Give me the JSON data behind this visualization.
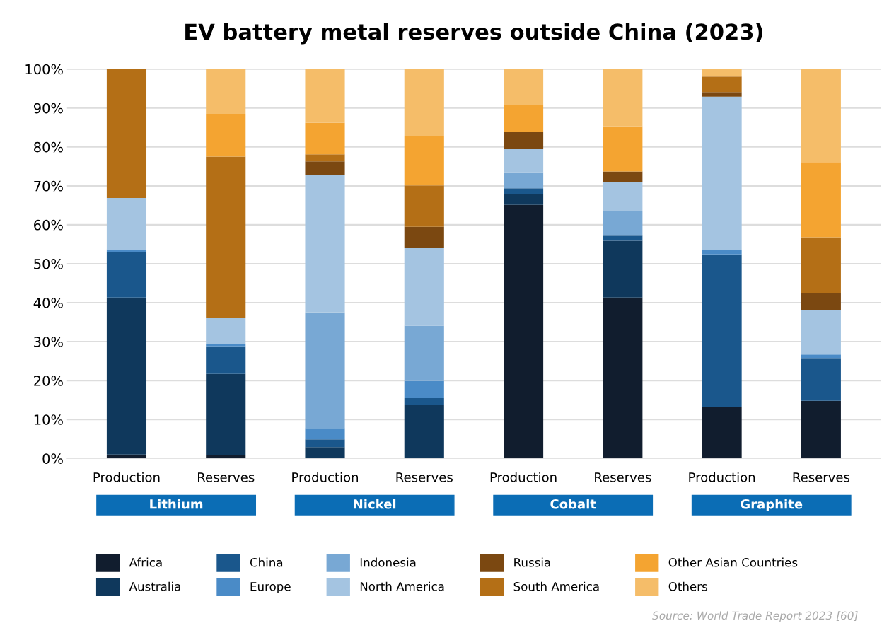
{
  "chart_data": {
    "type": "bar",
    "stacked": true,
    "title": "EV battery metal reserves outside China (2023)",
    "categories": [
      "Production",
      "Reserves",
      "Production",
      "Reserves",
      "Production",
      "Reserves",
      "Production",
      "Reserves"
    ],
    "series": [
      {
        "name": "Africa",
        "color": "#111d2e",
        "values": [
          1,
          0.9,
          0,
          0,
          65.1,
          41.3,
          13.3,
          14.8
        ]
      },
      {
        "name": "Australia",
        "color": "#0f385c",
        "values": [
          40.3,
          20.8,
          2.9,
          13.7,
          2.8,
          14.6,
          0,
          0
        ]
      },
      {
        "name": "China",
        "color": "#1a578c",
        "values": [
          11.6,
          7.1,
          2.0,
          1.8,
          1.5,
          1.5,
          39.1,
          11.0
        ]
      },
      {
        "name": "Europe",
        "color": "#4a8bc7",
        "values": [
          0.8,
          0.5,
          2.9,
          4.4,
          0,
          0,
          1.1,
          0.9
        ]
      },
      {
        "name": "Indonesia",
        "color": "#78a8d4",
        "values": [
          0,
          0,
          29.7,
          14.2,
          4.1,
          6.2,
          0,
          0
        ]
      },
      {
        "name": "North America",
        "color": "#a4c4e1",
        "values": [
          13.2,
          6.8,
          35.2,
          20.0,
          6.0,
          7.3,
          39.4,
          11.5
        ]
      },
      {
        "name": "Russia",
        "color": "#7b4811",
        "values": [
          0,
          0,
          3.6,
          5.4,
          4.3,
          2.8,
          1.2,
          4.2
        ]
      },
      {
        "name": "South America",
        "color": "#b46f16",
        "values": [
          33.1,
          41.4,
          1.8,
          10.6,
          0,
          0,
          4.0,
          14.4
        ]
      },
      {
        "name": "Other Asian Countries",
        "color": "#f4a431",
        "values": [
          0,
          11.0,
          8.1,
          12.6,
          6.9,
          11.6,
          0,
          19.3
        ]
      },
      {
        "name": "Others",
        "color": "#f5bd69",
        "values": [
          0,
          11.5,
          13.8,
          17.3,
          9.3,
          14.7,
          1.9,
          23.9
        ]
      }
    ],
    "ylim": [
      0,
      100
    ],
    "yticks": [
      {
        "value": 0,
        "label": "0%"
      },
      {
        "value": 10,
        "label": "10%"
      },
      {
        "value": 20,
        "label": "20%"
      },
      {
        "value": 30,
        "label": "30%"
      },
      {
        "value": 40,
        "label": "40%"
      },
      {
        "value": 50,
        "label": "50%"
      },
      {
        "value": 60,
        "label": "60%"
      },
      {
        "value": 70,
        "label": "70%"
      },
      {
        "value": 80,
        "label": "80%"
      },
      {
        "value": 90,
        "label": "90%"
      },
      {
        "value": 100,
        "label": "100%"
      }
    ],
    "grid": "y",
    "legend": "bottom",
    "annotations": [
      "Lithium",
      "Nickel",
      "Cobalt",
      "Graphite",
      "Source: World Trade Report 2023 [60]"
    ]
  }
}
